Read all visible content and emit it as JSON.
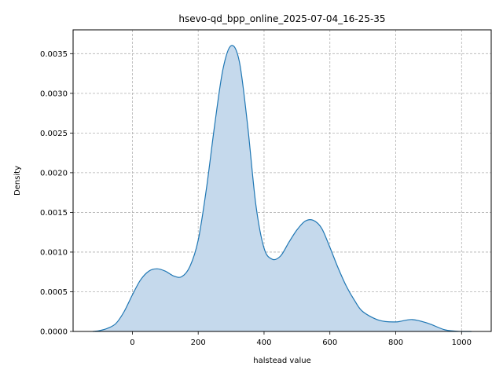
{
  "chart_data": {
    "type": "area",
    "title": "hsevo-qd_bpp_online_2025-07-04_16-25-35",
    "xlabel": "halstead value",
    "ylabel": "Density",
    "xlim": [
      -180,
      1090
    ],
    "ylim": [
      0,
      0.0038
    ],
    "x_ticks": [
      0,
      200,
      400,
      600,
      800,
      1000
    ],
    "x_tick_labels": [
      "0",
      "200",
      "400",
      "600",
      "800",
      "1000"
    ],
    "y_ticks": [
      0,
      0.0005,
      0.001,
      0.0015,
      0.002,
      0.0025,
      0.003,
      0.0035
    ],
    "y_tick_labels": [
      "0.0000",
      "0.0005",
      "0.0010",
      "0.0015",
      "0.0020",
      "0.0025",
      "0.0030",
      "0.0035"
    ],
    "grid": true,
    "legend": "none",
    "series": [
      {
        "line_color": "#1f77b4",
        "fill_color": "#c5d9ec",
        "x": [
          -120,
          -100,
          -75,
          -50,
          -25,
          0,
          25,
          50,
          75,
          100,
          125,
          150,
          175,
          200,
          225,
          250,
          275,
          300,
          325,
          350,
          375,
          400,
          425,
          450,
          475,
          500,
          525,
          550,
          575,
          600,
          625,
          650,
          675,
          700,
          750,
          800,
          850,
          900,
          950,
          1000,
          1030
        ],
        "y": [
          0.0,
          1e-05,
          4e-05,
          0.0001,
          0.00025,
          0.00046,
          0.00065,
          0.00076,
          0.00079,
          0.00076,
          0.0007,
          0.00069,
          0.00082,
          0.00115,
          0.0018,
          0.0026,
          0.0033,
          0.0036,
          0.0034,
          0.0026,
          0.0016,
          0.00105,
          0.00091,
          0.00095,
          0.00112,
          0.00128,
          0.00139,
          0.0014,
          0.0013,
          0.00106,
          0.0008,
          0.00057,
          0.00039,
          0.00025,
          0.00014,
          0.00012,
          0.00015,
          0.0001,
          2e-05,
          0.0,
          0.0
        ]
      }
    ]
  }
}
